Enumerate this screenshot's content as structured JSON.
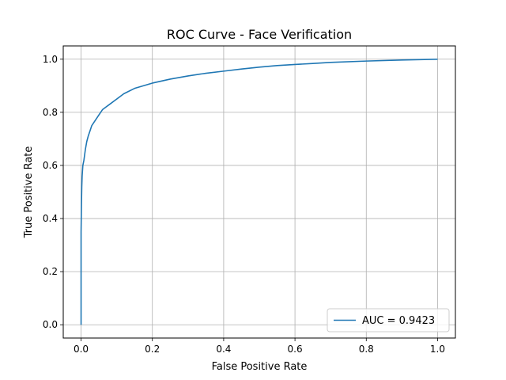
{
  "chart_data": {
    "type": "line",
    "title": "ROC Curve - Face Verification",
    "xlabel": "False Positive Rate",
    "ylabel": "True Positive Rate",
    "xlim": [
      -0.05,
      1.05
    ],
    "ylim": [
      -0.05,
      1.05
    ],
    "xticks": [
      0.0,
      0.2,
      0.4,
      0.6,
      0.8,
      1.0
    ],
    "yticks": [
      0.0,
      0.2,
      0.4,
      0.6,
      0.8,
      1.0
    ],
    "xtick_labels": [
      "0.0",
      "0.2",
      "0.4",
      "0.6",
      "0.8",
      "1.0"
    ],
    "ytick_labels": [
      "0.0",
      "0.2",
      "0.4",
      "0.6",
      "0.8",
      "1.0"
    ],
    "grid": true,
    "legend_position": "lower-right",
    "series": [
      {
        "name": "AUC = 0.9423",
        "color": "#1f77b4",
        "x": [
          0.0,
          0.0,
          0.001,
          0.002,
          0.003,
          0.005,
          0.008,
          0.012,
          0.016,
          0.02,
          0.025,
          0.03,
          0.04,
          0.05,
          0.06,
          0.07,
          0.08,
          0.1,
          0.12,
          0.15,
          0.2,
          0.25,
          0.3,
          0.35,
          0.4,
          0.45,
          0.5,
          0.55,
          0.6,
          0.65,
          0.7,
          0.8,
          0.9,
          1.0
        ],
        "y": [
          0.0,
          0.35,
          0.45,
          0.52,
          0.56,
          0.6,
          0.62,
          0.66,
          0.69,
          0.71,
          0.73,
          0.75,
          0.77,
          0.79,
          0.81,
          0.82,
          0.83,
          0.85,
          0.87,
          0.89,
          0.91,
          0.925,
          0.937,
          0.947,
          0.955,
          0.963,
          0.97,
          0.976,
          0.98,
          0.984,
          0.988,
          0.993,
          0.997,
          1.0
        ]
      }
    ]
  }
}
